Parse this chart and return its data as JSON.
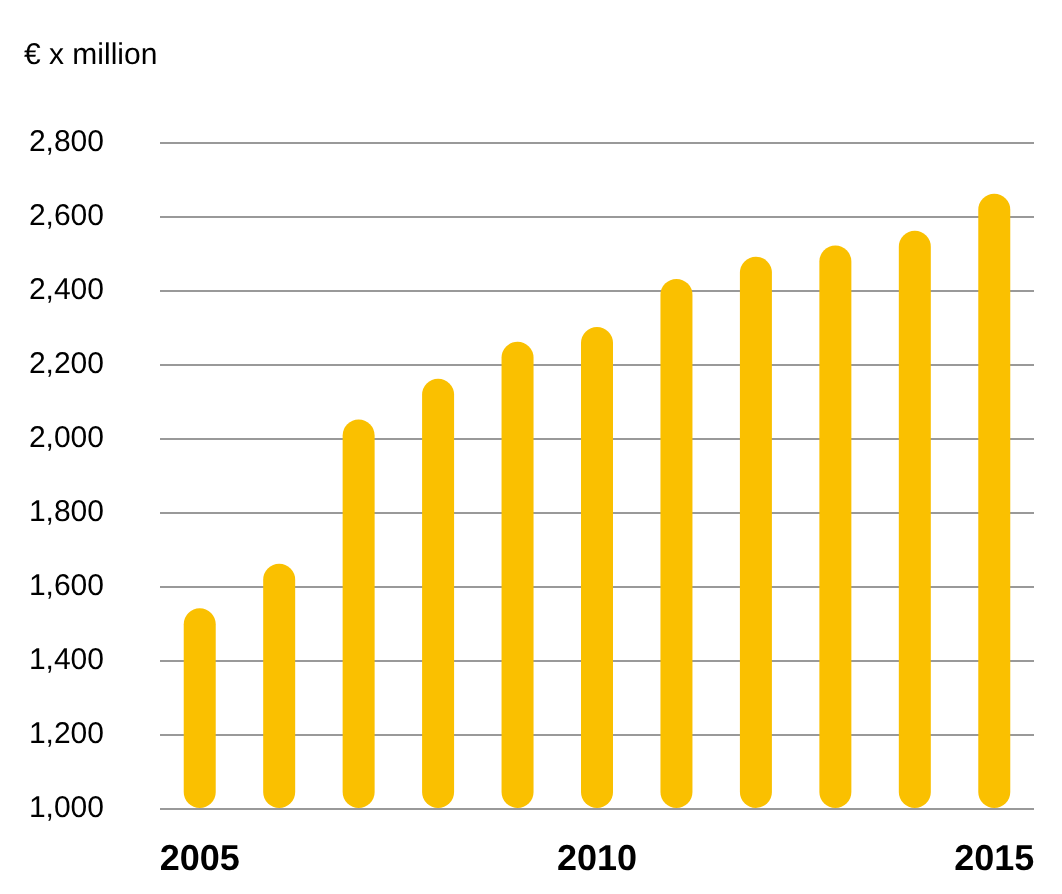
{
  "chart_data": {
    "type": "bar",
    "ylabel": "€ x million",
    "categories": [
      "2005",
      null,
      null,
      null,
      null,
      "2010",
      null,
      null,
      null,
      null,
      "2015"
    ],
    "values": [
      1540,
      1660,
      2050,
      2160,
      2260,
      2300,
      2430,
      2490,
      2520,
      2560,
      2660
    ],
    "color": "#fac000",
    "ylim": [
      1000,
      2800
    ],
    "yticks": [
      {
        "value": 1000,
        "label": "1,000"
      },
      {
        "value": 1200,
        "label": "1,200"
      },
      {
        "value": 1400,
        "label": "1,400"
      },
      {
        "value": 1600,
        "label": "1,600"
      },
      {
        "value": 1800,
        "label": "1,800"
      },
      {
        "value": 2000,
        "label": "2,000"
      },
      {
        "value": 2200,
        "label": "2,200"
      },
      {
        "value": 2400,
        "label": "2,400"
      },
      {
        "value": 2600,
        "label": "2,600"
      },
      {
        "value": 2800,
        "label": "2,800"
      }
    ],
    "grid": "y"
  }
}
